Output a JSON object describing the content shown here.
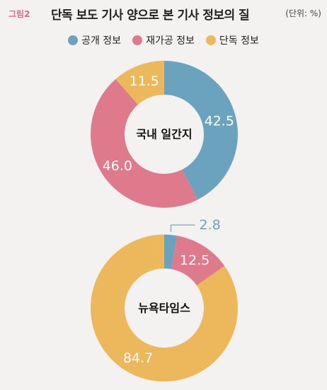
{
  "header": {
    "figure_label": "그림2",
    "title": "단독 보도 기사 양으로 본 기사 정보의 질",
    "unit": "(단위: %)"
  },
  "legend": [
    {
      "label": "공개 정보",
      "color": "#6ba3be"
    },
    {
      "label": "재가공 정보",
      "color": "#de7a8c"
    },
    {
      "label": "단독 정보",
      "color": "#edb85c"
    }
  ],
  "chart_data": [
    {
      "type": "pie",
      "donut": true,
      "center_label": "국내 일간지",
      "slices": [
        {
          "name": "공개 정보",
          "value": 42.5,
          "label": "42.5",
          "color": "#6ba3be"
        },
        {
          "name": "재가공 정보",
          "value": 46.0,
          "label": "46.0",
          "color": "#de7a8c"
        },
        {
          "name": "단독 정보",
          "value": 11.5,
          "label": "11.5",
          "color": "#edb85c"
        }
      ]
    },
    {
      "type": "pie",
      "donut": true,
      "center_label": "뉴욕타임스",
      "slices": [
        {
          "name": "공개 정보",
          "value": 2.8,
          "label": "2.8",
          "color": "#6ba3be",
          "label_outside": true
        },
        {
          "name": "재가공 정보",
          "value": 12.5,
          "label": "12.5",
          "color": "#de7a8c"
        },
        {
          "name": "단독 정보",
          "value": 84.7,
          "label": "84.7",
          "color": "#edb85c"
        }
      ]
    }
  ]
}
